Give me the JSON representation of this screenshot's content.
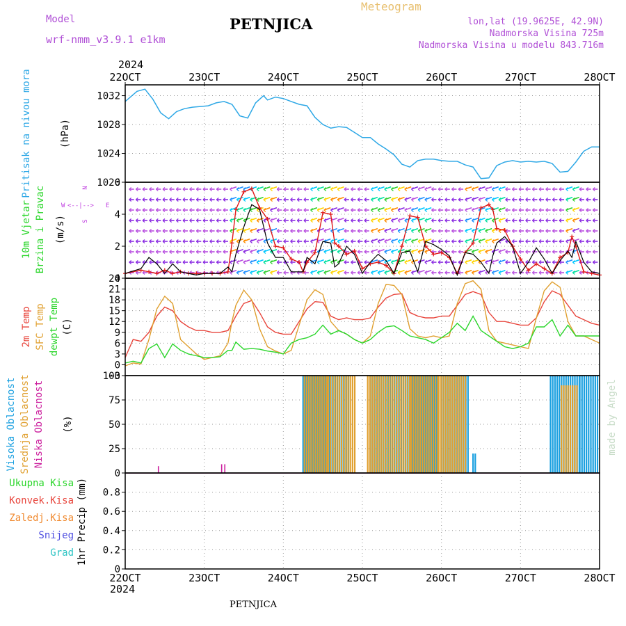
{
  "header": {
    "model_label": "Model",
    "model_name": "wrf-nmm_v3.9.1 e1km",
    "station": "PETNJICA",
    "meteogram": "Meteogram",
    "lonlat": "lon,lat (19.9625E, 42.9N)",
    "altitude": "Nadmorska Visina 725m",
    "model_altitude": "Nadmorska Visina u modelu 843.716m",
    "year_top": "2024",
    "year_bottom": "2024"
  },
  "footer": {
    "station": "PETNJICA"
  },
  "watermark": "made by Angel",
  "colors": {
    "pressure": "#2ea8e6",
    "temp": "#e8453c",
    "sfc_temp": "#e0a030",
    "dewpt": "#2bd62b",
    "cloud_high": "#1aa0e0",
    "cloud_mid": "#e0a030",
    "cloud_low": "#cc1f9e",
    "wind_speed": "#000000",
    "wind_gust": "#e01818"
  },
  "chart_data": [
    {
      "type": "line",
      "panel": "pressure",
      "ylabel_rotated": "Pritisak na nivou mora",
      "unit": "(hPa)",
      "x_ticks": [
        "22OCT",
        "23OCT",
        "24OCT",
        "25OCT",
        "26OCT",
        "27OCT",
        "28OCT"
      ],
      "ylim": [
        1020,
        1033.5
      ],
      "yticks": [
        1020,
        1024,
        1028,
        1032
      ],
      "grid": true,
      "x": [
        22.0,
        22.15,
        22.25,
        22.35,
        22.45,
        22.55,
        22.65,
        22.75,
        22.85,
        22.95,
        23.05,
        23.15,
        23.25,
        23.35,
        23.45,
        23.55,
        23.65,
        23.75,
        23.8,
        23.9,
        24.0,
        24.1,
        24.2,
        24.3,
        24.4,
        24.5,
        24.6,
        24.7,
        24.8,
        24.9,
        25.0,
        25.1,
        25.2,
        25.3,
        25.4,
        25.5,
        25.6,
        25.7,
        25.8,
        25.9,
        26.0,
        26.1,
        26.2,
        26.3,
        26.4,
        26.5,
        26.6,
        26.7,
        26.8,
        26.9,
        27.0,
        27.1,
        27.2,
        27.3,
        27.4,
        27.5,
        27.6,
        27.7,
        27.8,
        27.9,
        28.0
      ],
      "series": [
        {
          "values": [
            1031.2,
            1032.6,
            1032.9,
            1031.5,
            1029.6,
            1028.8,
            1029.8,
            1030.2,
            1030.4,
            1030.5,
            1030.6,
            1031.0,
            1031.2,
            1030.8,
            1029.2,
            1028.9,
            1031.0,
            1032.0,
            1031.4,
            1031.8,
            1031.6,
            1031.2,
            1030.8,
            1030.6,
            1029.0,
            1028.0,
            1027.5,
            1027.7,
            1027.6,
            1026.9,
            1026.2,
            1026.2,
            1025.3,
            1024.6,
            1023.8,
            1022.5,
            1022.1,
            1023.0,
            1023.2,
            1023.2,
            1023.0,
            1022.9,
            1022.9,
            1022.4,
            1022.1,
            1020.5,
            1020.6,
            1022.3,
            1022.8,
            1023.0,
            1022.8,
            1022.9,
            1022.8,
            1022.9,
            1022.6,
            1021.4,
            1021.5,
            1022.8,
            1024.3,
            1024.9,
            1024.9
          ]
        }
      ]
    },
    {
      "type": "line",
      "panel": "wind",
      "ylabel_rotated": [
        "10m Vjetar",
        "Brzina i Pravac"
      ],
      "unit": "(m/s)",
      "direction_legend": {
        "n": "N",
        "s": "S",
        "w": "W",
        "e": "E"
      },
      "ylim": [
        0,
        6
      ],
      "yticks": [
        0,
        2,
        4,
        6
      ],
      "grid": true,
      "x": [
        22.0,
        22.2,
        22.3,
        22.4,
        22.5,
        22.6,
        22.7,
        22.8,
        22.9,
        23.0,
        23.1,
        23.2,
        23.3,
        23.35,
        23.4,
        23.5,
        23.6,
        23.7,
        23.8,
        23.9,
        24.0,
        24.1,
        24.2,
        24.25,
        24.3,
        24.4,
        24.5,
        24.6,
        24.65,
        24.7,
        24.8,
        24.9,
        25.0,
        25.1,
        25.2,
        25.3,
        25.4,
        25.5,
        25.6,
        25.7,
        25.8,
        25.9,
        26.0,
        26.1,
        26.2,
        26.3,
        26.4,
        26.5,
        26.6,
        26.65,
        26.7,
        26.8,
        26.9,
        27.0,
        27.1,
        27.2,
        27.3,
        27.4,
        27.5,
        27.6,
        27.65,
        27.7,
        27.8,
        27.9,
        28.0
      ],
      "series": [
        {
          "name": "speed",
          "values": [
            0.3,
            0.6,
            1.3,
            0.9,
            0.3,
            0.9,
            0.4,
            0.3,
            0.2,
            0.3,
            0.3,
            0.3,
            0.7,
            0.4,
            1.5,
            3.2,
            4.6,
            4.3,
            2.2,
            1.3,
            1.3,
            0.4,
            0.4,
            0.4,
            1.3,
            0.9,
            2.3,
            2.2,
            0.7,
            0.9,
            2.0,
            1.5,
            0.3,
            1.0,
            1.5,
            1.1,
            0.3,
            1.6,
            1.7,
            0.4,
            2.3,
            2.1,
            1.8,
            1.4,
            0.2,
            1.6,
            1.5,
            1.0,
            0.3,
            1.4,
            2.2,
            2.6,
            2.0,
            0.3,
            1.0,
            1.9,
            1.2,
            0.3,
            1.1,
            1.7,
            1.3,
            2.3,
            1.0,
            0.4,
            0.3
          ]
        },
        {
          "name": "gust",
          "values": [
            0.3,
            0.5,
            0.4,
            0.3,
            0.5,
            0.3,
            0.4,
            0.3,
            0.3,
            0.3,
            0.3,
            0.3,
            0.4,
            2.2,
            4.3,
            5.4,
            5.6,
            4.4,
            3.7,
            2.0,
            1.9,
            1.2,
            1.0,
            0.4,
            1.0,
            1.6,
            4.1,
            4.0,
            2.2,
            2.0,
            1.5,
            1.7,
            0.6,
            0.9,
            1.0,
            0.8,
            0.3,
            2.0,
            3.9,
            3.8,
            2.0,
            1.5,
            1.6,
            1.3,
            0.3,
            1.6,
            2.2,
            4.4,
            4.6,
            4.3,
            3.1,
            3.0,
            2.0,
            1.2,
            0.5,
            0.9,
            0.6,
            0.3,
            1.3,
            1.6,
            2.6,
            2.0,
            0.4,
            0.3,
            0.2
          ]
        }
      ]
    },
    {
      "type": "line",
      "panel": "temperature",
      "ylabel_rotated": [
        "2m Temp",
        "SFC Temp",
        "dewpt Temp"
      ],
      "unit": "(C)",
      "ylim": [
        -3,
        24
      ],
      "yticks": [
        -3,
        0,
        3,
        6,
        9,
        12,
        15,
        18,
        21,
        24
      ],
      "grid": true,
      "x": [
        22.0,
        22.1,
        22.2,
        22.3,
        22.4,
        22.5,
        22.6,
        22.7,
        22.8,
        22.9,
        23.0,
        23.1,
        23.2,
        23.3,
        23.35,
        23.4,
        23.5,
        23.6,
        23.7,
        23.8,
        23.9,
        24.0,
        24.1,
        24.2,
        24.3,
        24.4,
        24.5,
        24.6,
        24.7,
        24.8,
        24.9,
        25.0,
        25.1,
        25.2,
        25.3,
        25.4,
        25.5,
        25.6,
        25.7,
        25.8,
        25.9,
        26.0,
        26.1,
        26.2,
        26.3,
        26.4,
        26.5,
        26.6,
        26.7,
        26.8,
        26.9,
        27.0,
        27.1,
        27.2,
        27.3,
        27.4,
        27.5,
        27.6,
        27.7,
        27.8,
        27.9,
        28.0
      ],
      "series": [
        {
          "name": "2m Temp",
          "values": [
            2.0,
            7.0,
            6.5,
            9.0,
            13.5,
            16.0,
            15.0,
            12.0,
            10.5,
            9.5,
            9.5,
            9.0,
            9.0,
            9.5,
            11.5,
            13.5,
            17.0,
            17.8,
            14.5,
            10.5,
            9.0,
            8.5,
            8.5,
            12.0,
            15.5,
            17.5,
            17.3,
            13.5,
            12.5,
            13.0,
            12.5,
            12.5,
            13.0,
            16.0,
            18.5,
            19.5,
            19.7,
            14.5,
            13.5,
            13.0,
            13.0,
            13.5,
            13.5,
            16.5,
            19.5,
            20.3,
            19.5,
            14.5,
            12.0,
            12.0,
            11.5,
            11.0,
            11.0,
            13.0,
            17.5,
            20.5,
            19.5,
            16.5,
            13.5,
            12.5,
            11.5,
            11.0
          ]
        },
        {
          "name": "SFC Temp",
          "values": [
            -0.3,
            0.5,
            0.2,
            7.0,
            15.5,
            19.0,
            17.0,
            7.0,
            5.0,
            3.0,
            1.5,
            2.0,
            2.5,
            6.0,
            12.0,
            16.5,
            20.7,
            18.0,
            10.0,
            5.0,
            3.8,
            3.0,
            4.0,
            11.0,
            18.0,
            20.8,
            19.5,
            12.0,
            9.5,
            8.5,
            7.0,
            6.0,
            8.0,
            17.0,
            22.3,
            22.0,
            19.5,
            10.0,
            8.0,
            7.5,
            8.0,
            7.5,
            8.0,
            17.0,
            22.5,
            23.3,
            21.0,
            9.5,
            6.5,
            6.0,
            5.5,
            5.0,
            4.5,
            13.0,
            20.5,
            23.0,
            21.5,
            12.0,
            8.0,
            8.0,
            7.0,
            6.0
          ]
        },
        {
          "name": "dewpt Temp",
          "values": [
            0.5,
            1.0,
            0.5,
            4.5,
            5.8,
            2.0,
            5.8,
            4.0,
            3.0,
            2.5,
            2.0,
            2.0,
            2.2,
            4.0,
            4.0,
            6.3,
            4.3,
            4.5,
            4.3,
            3.8,
            3.5,
            3.0,
            6.0,
            7.0,
            7.5,
            8.5,
            11.0,
            8.5,
            9.5,
            8.5,
            7.0,
            6.0,
            7.0,
            9.0,
            10.5,
            10.8,
            9.5,
            8.0,
            7.5,
            7.0,
            6.0,
            7.5,
            9.0,
            11.5,
            9.5,
            13.5,
            9.5,
            8.0,
            6.5,
            5.0,
            4.5,
            5.0,
            6.0,
            10.5,
            10.5,
            12.5,
            8.0,
            11.0,
            8.0,
            8.0,
            8.0,
            8.0
          ]
        }
      ]
    },
    {
      "type": "bar",
      "panel": "clouds",
      "ylabel_rotated": [
        "Visoka Oblacnost",
        "Srednja Oblacnost",
        "Niska Oblacnost"
      ],
      "unit": "(%)",
      "ylim": [
        0,
        100
      ],
      "yticks": [
        0,
        25,
        50,
        75,
        100
      ],
      "grid": true,
      "high_intervals": [
        [
          24.25,
          24.6
        ],
        [
          24.6,
          24.85
        ],
        [
          25.1,
          25.6
        ],
        [
          25.6,
          25.95
        ],
        [
          26.0,
          26.35
        ],
        [
          26.4,
          26.45
        ],
        [
          27.38,
          27.75
        ],
        [
          27.75,
          28.0
        ]
      ],
      "mid_intervals": [
        [
          24.25,
          24.55
        ],
        [
          24.55,
          24.9
        ],
        [
          25.05,
          25.6
        ],
        [
          25.6,
          25.95
        ],
        [
          25.95,
          26.3
        ],
        [
          27.5,
          27.7
        ]
      ],
      "high_values": [
        100,
        100,
        100,
        100,
        100,
        20,
        100,
        100
      ],
      "mid_values": [
        100,
        100,
        100,
        100,
        100,
        90
      ],
      "low_spikes": [
        {
          "x": 22.42,
          "value": 7
        },
        {
          "x": 23.22,
          "value": 9
        },
        {
          "x": 23.26,
          "value": 9
        }
      ]
    },
    {
      "type": "line",
      "panel": "precip",
      "ylabel": "1hr Precip (mm)",
      "legend": [
        "Ukupna Kisa",
        "Konvek.Kisa",
        "Zaledj.Kisa",
        "Snijeg",
        "Grad"
      ],
      "legend_colors": [
        "#2bd62b",
        "#e8453c",
        "#f08a30",
        "#4d4de0",
        "#2ec4c4"
      ],
      "ylim": [
        0,
        1
      ],
      "yticks": [
        0,
        0.2,
        0.4,
        0.6,
        0.8
      ],
      "grid": true,
      "series": []
    }
  ]
}
